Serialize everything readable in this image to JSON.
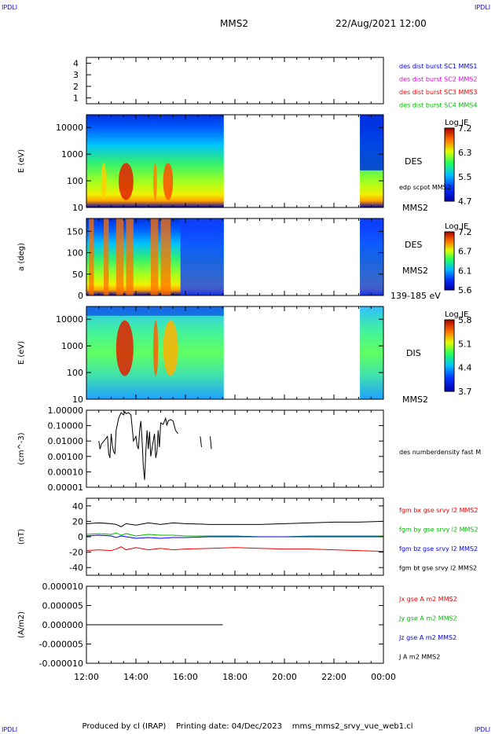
{
  "header": {
    "corner_tl": "IPDLI",
    "corner_tr": "IPDLI",
    "corner_bl": "IPDLI",
    "corner_br": "IPDLI",
    "spacecraft": "MMS2",
    "datetime": "22/Aug/2021 12:00"
  },
  "footer": {
    "produced_by": "Produced by cl (IRAP)",
    "printing_date": "Printing date: 04/Dec/2023",
    "filename": "mms_mms2_srvy_vue_web1.cl"
  },
  "colors": {
    "blue": "#0000ee",
    "magenta": "#dd00dd",
    "red": "#ee0000",
    "green": "#00bb00",
    "black": "#000000"
  },
  "time_axis": {
    "start_hour": 12,
    "end_hour": 24,
    "tick_labels": [
      "12:00",
      "14:00",
      "16:00",
      "18:00",
      "20:00",
      "22:00",
      "00:00"
    ]
  },
  "chart_data": [
    {
      "type": "line",
      "panel": "spacecraft indicator",
      "yticks": [
        "4",
        "3",
        "2",
        "1"
      ],
      "ylim": [
        0.5,
        4.5
      ],
      "legend": [
        "des dist burst SC1 MMS1",
        "des dist burst SC2 MMS2",
        "des dist burst SC3 MMS3",
        "des dist burst SC4 MMS4"
      ],
      "legend_colors": [
        "#0000ee",
        "#dd00dd",
        "#ee0000",
        "#00bb00"
      ],
      "series": []
    },
    {
      "type": "heatmap",
      "panel": "DES energy spectrogram",
      "ylabel": "E (eV)",
      "ytick_labels": [
        "10000",
        "1000",
        "100",
        "10"
      ],
      "ylim": [
        10,
        30000
      ],
      "yscale": "log",
      "colorbar": {
        "title": "Log JE",
        "ticks": [
          "7.2",
          "6.3",
          "5.5",
          "4.7"
        ],
        "range": [
          4.7,
          7.2
        ]
      },
      "labels": [
        "DES",
        "edp scpot MMS2",
        "MMS2"
      ],
      "data_gaps_hours": [
        [
          17.55,
          23.05
        ]
      ],
      "coverage_hours": [
        [
          12.0,
          17.55
        ],
        [
          23.05,
          24.0
        ]
      ]
    },
    {
      "type": "heatmap",
      "panel": "DES pitch angle",
      "ylabel": "a (deg)",
      "ytick_labels": [
        "150",
        "100",
        "50",
        "0"
      ],
      "ylim": [
        0,
        180
      ],
      "colorbar": {
        "title": "Log JE",
        "ticks": [
          "7.2",
          "6.7",
          "6.1",
          "5.6"
        ],
        "range": [
          5.6,
          7.2
        ]
      },
      "labels": [
        "DES",
        "MMS2",
        "139-185 eV"
      ],
      "data_gaps_hours": [
        [
          17.55,
          23.05
        ]
      ]
    },
    {
      "type": "heatmap",
      "panel": "DIS energy spectrogram",
      "ylabel": "E (eV)",
      "ytick_labels": [
        "10000",
        "1000",
        "100",
        "10"
      ],
      "ylim": [
        10,
        30000
      ],
      "yscale": "log",
      "colorbar": {
        "title": "Log JE",
        "ticks": [
          "5.8",
          "5.1",
          "4.4",
          "3.7"
        ],
        "range": [
          3.7,
          5.8
        ]
      },
      "labels": [
        "DIS",
        "MMS2"
      ],
      "data_gaps_hours": [
        [
          17.55,
          23.05
        ]
      ]
    },
    {
      "type": "line",
      "panel": "electron density",
      "ylabel": "(cm^-3)",
      "yscale": "log",
      "ytick_labels": [
        "1.00000",
        "0.10000",
        "0.01000",
        "0.00100",
        "0.00010",
        "0.00001"
      ],
      "ylim": [
        1e-05,
        1.0
      ],
      "labels": [
        "des numberdensity fast M"
      ],
      "series": [
        {
          "color": "#000000",
          "x": [
            12.5,
            12.55,
            12.6,
            12.85,
            12.9,
            12.95,
            13.0,
            13.05,
            13.1,
            13.15,
            13.2,
            13.3,
            13.4,
            13.5,
            13.55,
            13.6,
            13.7,
            13.75,
            13.8,
            13.9,
            14.0,
            14.05,
            14.1,
            14.15,
            14.2,
            14.25,
            14.3,
            14.35,
            14.4,
            14.45,
            14.5,
            14.55,
            14.6,
            14.7,
            14.75,
            14.8,
            14.85,
            14.9,
            14.95,
            15.0,
            15.1,
            15.2,
            15.25,
            15.3,
            15.4,
            15.5,
            15.6,
            15.7
          ],
          "y": [
            0.01,
            0.003,
            0.006,
            0.02,
            0.0015,
            0.0008,
            0.03,
            0.005,
            0.002,
            0.0015,
            0.05,
            0.3,
            0.7,
            0.5,
            0.8,
            0.6,
            0.7,
            0.6,
            0.5,
            0.01,
            0.02,
            0.005,
            0.003,
            0.05,
            0.2,
            0.01,
            0.0002,
            3e-05,
            0.002,
            0.05,
            0.003,
            0.04,
            0.001,
            0.01,
            0.03,
            0.0008,
            0.002,
            0.05,
            0.004,
            0.15,
            0.12,
            0.3,
            0.1,
            0.2,
            0.25,
            0.2,
            0.05,
            0.03
          ]
        },
        {
          "color": "#000000",
          "x": [
            16.6,
            16.65
          ],
          "y": [
            0.02,
            0.004
          ]
        },
        {
          "color": "#000000",
          "x": [
            17.0,
            17.05
          ],
          "y": [
            0.02,
            0.003
          ]
        }
      ]
    },
    {
      "type": "line",
      "panel": "magnetic field",
      "ylabel": "(nT)",
      "ytick_labels": [
        "40",
        "20",
        "0",
        "-20",
        "-40"
      ],
      "ylim": [
        -50,
        50
      ],
      "x": [
        12.0,
        12.5,
        13.0,
        13.2,
        13.4,
        13.6,
        14.0,
        14.5,
        15.0,
        15.5,
        16.0,
        17.0,
        18.0,
        19.0,
        20.0,
        21.0,
        22.0,
        23.0,
        24.0
      ],
      "series": [
        {
          "name": "fgm bx gse srvy l2 MMS2",
          "color": "#ee0000",
          "values": [
            -18,
            -17,
            -18,
            -16,
            -13,
            -17,
            -14,
            -17,
            -15,
            -17,
            -16,
            -15,
            -14,
            -15,
            -16,
            -16,
            -17,
            -18,
            -19
          ]
        },
        {
          "name": "fgm by gse srvy l2 MMS2",
          "color": "#00bb00",
          "values": [
            3,
            4,
            3,
            5,
            2,
            4,
            1,
            3,
            2,
            2,
            1,
            1,
            1,
            0,
            0,
            1,
            1,
            1,
            1
          ]
        },
        {
          "name": "fgm bz gse srvy l2 MMS2",
          "color": "#0000ee",
          "values": [
            1,
            2,
            1,
            -1,
            1,
            0,
            -2,
            -1,
            -2,
            -1,
            -1,
            0,
            0,
            0,
            0,
            0,
            0,
            0,
            0
          ]
        },
        {
          "name": "fgm bt gse srvy l2 MMS2",
          "color": "#000000",
          "values": [
            17,
            18,
            17,
            16,
            13,
            17,
            15,
            18,
            16,
            18,
            17,
            16,
            16,
            16,
            17,
            18,
            19,
            19,
            20
          ]
        }
      ]
    },
    {
      "type": "line",
      "panel": "current density",
      "ylabel": "(A/m2)",
      "ytick_labels": [
        "0.000010",
        "0.000005",
        "0.000000",
        "-0.000005",
        "-0.000010"
      ],
      "ylim": [
        -1e-05,
        1e-05
      ],
      "x": [
        12.0,
        13.5,
        15.0,
        17.5
      ],
      "series": [
        {
          "name": "Jx gse A m2 MMS2",
          "color": "#ee0000",
          "values": [
            0,
            0,
            0,
            0
          ]
        },
        {
          "name": "Jy gse A m2 MMS2",
          "color": "#00bb00",
          "values": [
            0,
            0,
            0,
            0
          ]
        },
        {
          "name": "Jz gse A m2 MMS2",
          "color": "#0000ee",
          "values": [
            0,
            0,
            0,
            0
          ]
        },
        {
          "name": "J A m2 MMS2",
          "color": "#000000",
          "values": [
            0,
            0,
            0,
            0
          ]
        }
      ]
    }
  ]
}
